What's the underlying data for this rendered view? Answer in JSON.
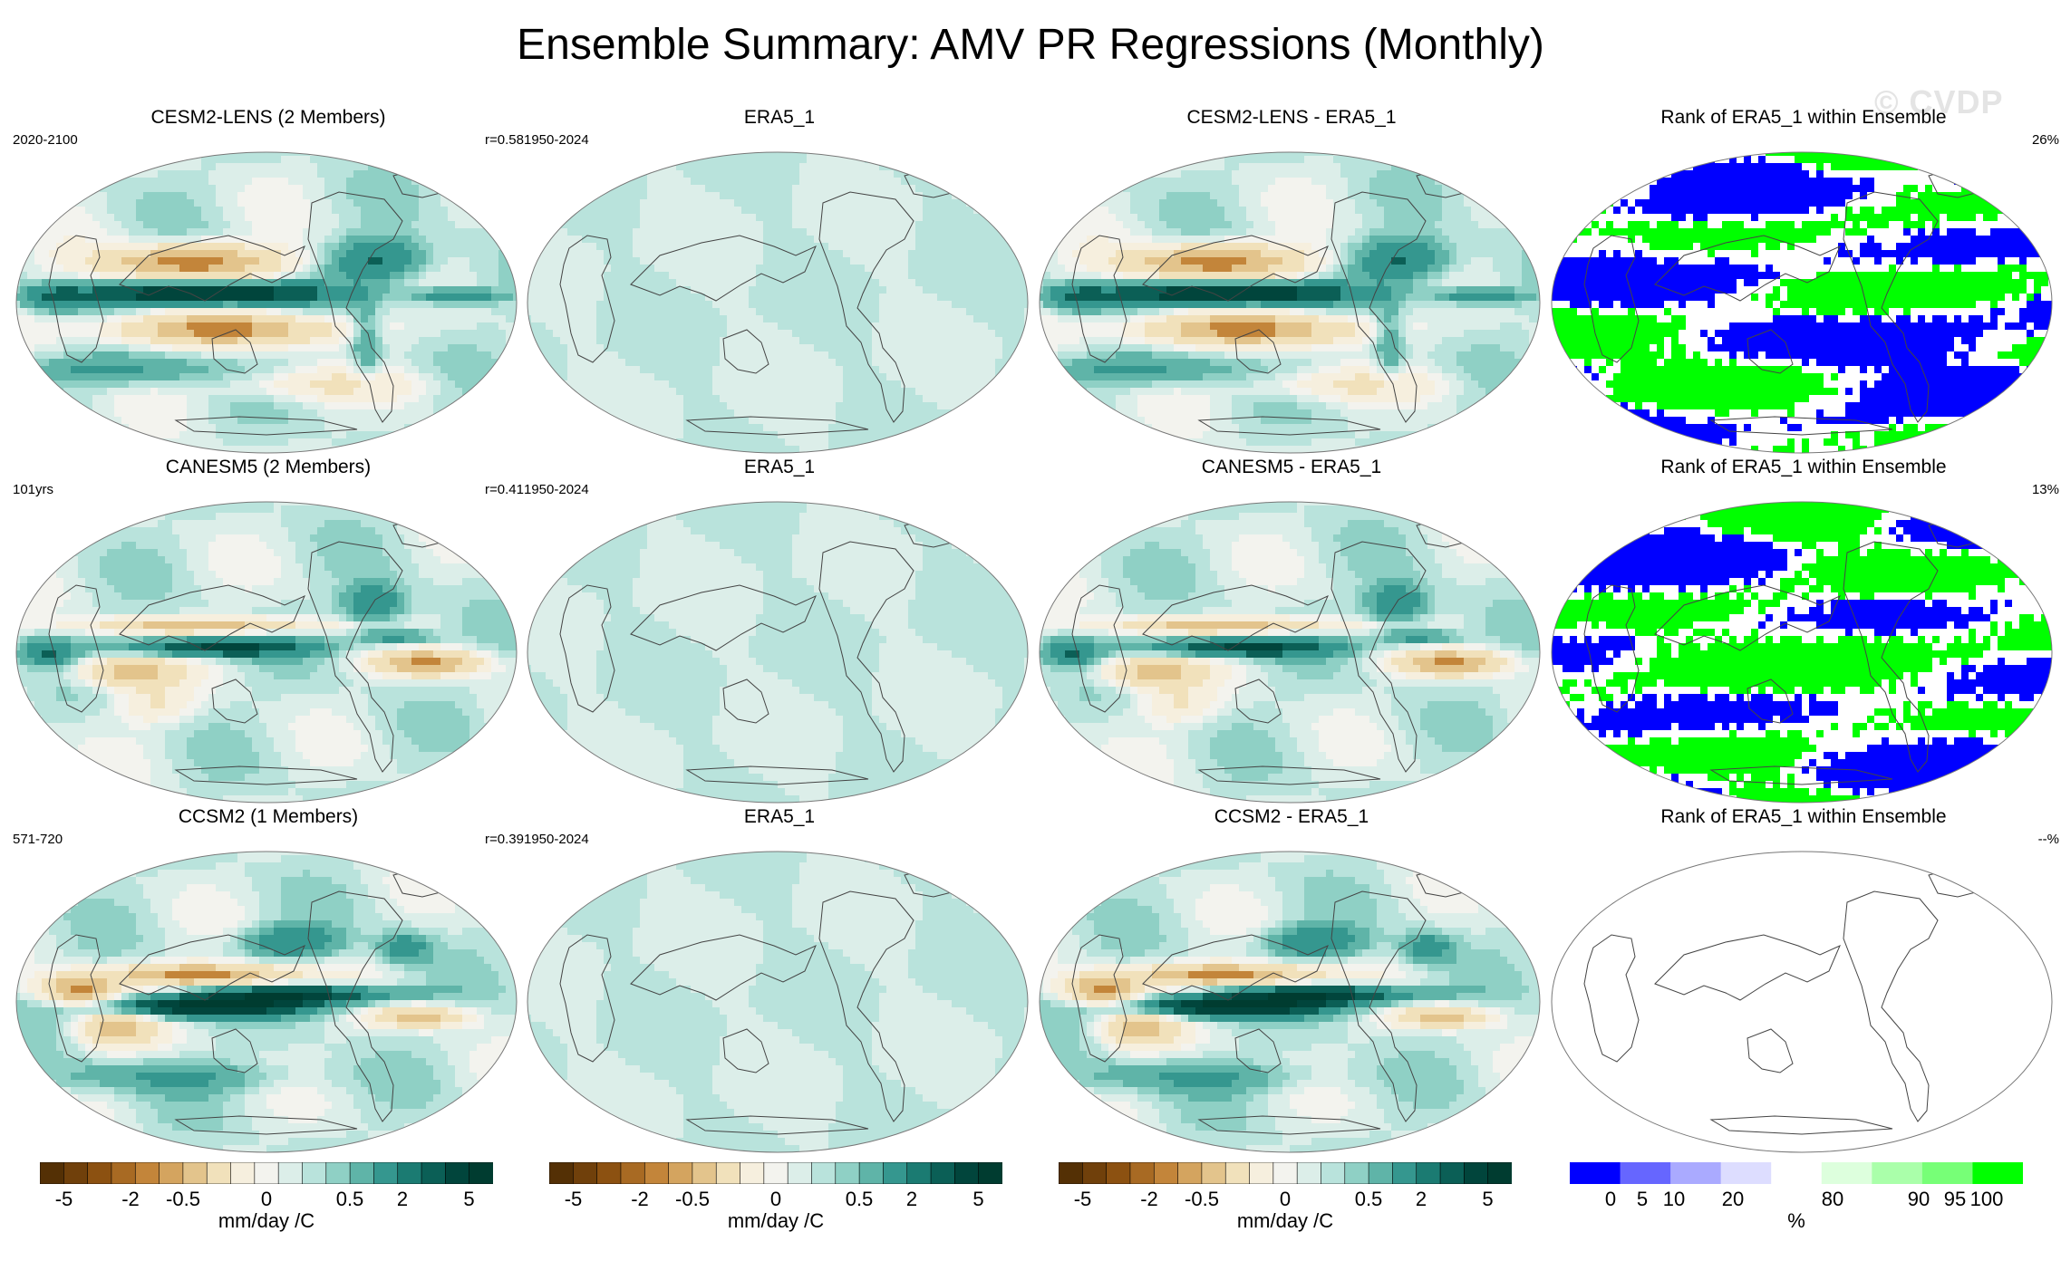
{
  "title": "Ensemble Summary: AMV PR Regressions (Monthly)",
  "watermark": "© CVDP",
  "chart_data": {
    "type": "heatmap",
    "layout": "3 rows x 4 columns of global maps",
    "rows": [
      {
        "model": "CESM2-LENS",
        "panels": [
          {
            "title": "CESM2-LENS (2 Members)",
            "left": "2020-2100",
            "right": "r=0.58",
            "kind": "regression",
            "pattern": 0
          },
          {
            "title": "ERA5_1",
            "left": "1950-2024",
            "right": "",
            "kind": "obs",
            "pattern": 9
          },
          {
            "title": "CESM2-LENS - ERA5_1",
            "left": "",
            "right": "",
            "kind": "difference",
            "pattern": 0
          },
          {
            "title": "Rank of ERA5_1 within Ensemble",
            "left": "",
            "right": "26%",
            "kind": "rank",
            "pattern": 0
          }
        ]
      },
      {
        "model": "CANESM5",
        "panels": [
          {
            "title": "CANESM5 (2 Members)",
            "left": "101yrs",
            "right": "r=0.41",
            "kind": "regression",
            "pattern": 1
          },
          {
            "title": "ERA5_1",
            "left": "1950-2024",
            "right": "",
            "kind": "obs",
            "pattern": 9
          },
          {
            "title": "CANESM5 - ERA5_1",
            "left": "",
            "right": "",
            "kind": "difference",
            "pattern": 1
          },
          {
            "title": "Rank of ERA5_1 within Ensemble",
            "left": "",
            "right": "13%",
            "kind": "rank",
            "pattern": 1
          }
        ]
      },
      {
        "model": "CCSM2",
        "panels": [
          {
            "title": "CCSM2 (1 Members)",
            "left": "571-720",
            "right": "r=0.39",
            "kind": "regression",
            "pattern": 2
          },
          {
            "title": "ERA5_1",
            "left": "1950-2024",
            "right": "",
            "kind": "obs",
            "pattern": 9
          },
          {
            "title": "CCSM2 - ERA5_1",
            "left": "",
            "right": "",
            "kind": "difference",
            "pattern": 2
          },
          {
            "title": "Rank of ERA5_1 within Ensemble",
            "left": "",
            "right": "--%",
            "kind": "rank_empty",
            "pattern": 2
          }
        ]
      }
    ],
    "colorbars": [
      {
        "type": "diverging",
        "levels": [
          -5,
          -4,
          -3,
          -2,
          -1,
          -0.5,
          -0.25,
          0,
          0.25,
          0.5,
          1,
          2,
          3,
          4,
          5
        ],
        "tick_labels": [
          "-5",
          "-2",
          "-0.5",
          "0",
          "0.5",
          "2",
          "5"
        ],
        "tick_values": [
          -5,
          -2,
          -0.5,
          0,
          0.5,
          2,
          5
        ],
        "units": "mm/day /C",
        "colors": [
          "#543005",
          "#70400b",
          "#8c5111",
          "#a86a23",
          "#c3853a",
          "#d4a45f",
          "#e3c48c",
          "#f1e1bb",
          "#f6efde",
          "#f3f3ee",
          "#dceee9",
          "#b9e3dc",
          "#8fd0c5",
          "#5fb4a8",
          "#35978f",
          "#1b7b72",
          "#0b5f56",
          "#01453c",
          "#003c30"
        ]
      },
      {
        "type": "rank",
        "tick_labels": [
          "0",
          "5",
          "10",
          "20",
          "80",
          "90",
          "95",
          "100"
        ],
        "tick_values": [
          0,
          5,
          10,
          20,
          80,
          90,
          95,
          100
        ],
        "units": "%",
        "colors": [
          "#0000ff",
          "#6666ff",
          "#aaaaff",
          "#ddddff",
          "#ffffff",
          "#ddffdd",
          "#aaffaa",
          "#77ff77",
          "#00ff00"
        ]
      }
    ]
  }
}
